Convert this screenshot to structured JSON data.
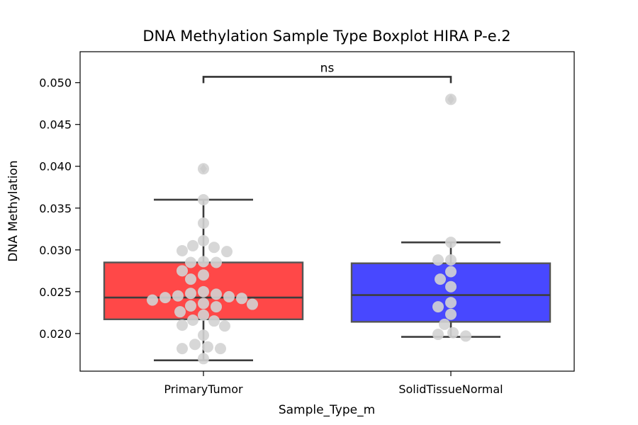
{
  "chart_data": {
    "type": "box",
    "title": "DNA Methylation Sample Type Boxplot HIRA P-e.2",
    "xlabel": "Sample_Type_m",
    "ylabel": "DNA Methylation",
    "ylim": [
      0.0155,
      0.0537
    ],
    "yticks": [
      "0.020",
      "0.025",
      "0.030",
      "0.035",
      "0.040",
      "0.045",
      "0.050"
    ],
    "ytick_values": [
      0.02,
      0.025,
      0.03,
      0.035,
      0.04,
      0.045,
      0.05
    ],
    "categories": [
      "PrimaryTumor",
      "SolidTissueNormal"
    ],
    "significance": {
      "label": "ns",
      "between": [
        "PrimaryTumor",
        "SolidTissueNormal"
      ],
      "y": 0.0507
    },
    "boxes": [
      {
        "category": "PrimaryTumor",
        "color": "#ff4848",
        "whisker_low": 0.0168,
        "q1": 0.0217,
        "median": 0.0243,
        "q3": 0.0285,
        "whisker_high": 0.036,
        "outliers": [
          0.0397
        ],
        "points": [
          0.0397,
          0.036,
          0.0332,
          0.0311,
          0.0305,
          0.0303,
          0.0299,
          0.0298,
          0.0286,
          0.0285,
          0.0285,
          0.0275,
          0.027,
          0.0265,
          0.025,
          0.0248,
          0.0247,
          0.0245,
          0.0244,
          0.0243,
          0.0242,
          0.024,
          0.0236,
          0.0235,
          0.0233,
          0.0232,
          0.0226,
          0.0222,
          0.0216,
          0.0215,
          0.021,
          0.0209,
          0.0198,
          0.0187,
          0.0184,
          0.0182,
          0.0182,
          0.017
        ]
      },
      {
        "category": "SolidTissueNormal",
        "color": "#4848ff",
        "whisker_low": 0.0196,
        "q1": 0.0214,
        "median": 0.0246,
        "q3": 0.0284,
        "whisker_high": 0.0309,
        "outliers": [
          0.048
        ],
        "points": [
          0.048,
          0.0309,
          0.0288,
          0.0288,
          0.0274,
          0.0265,
          0.0256,
          0.0237,
          0.0232,
          0.0223,
          0.0211,
          0.0201,
          0.0199,
          0.0197
        ]
      }
    ],
    "point_color": "#d3d3d3"
  }
}
